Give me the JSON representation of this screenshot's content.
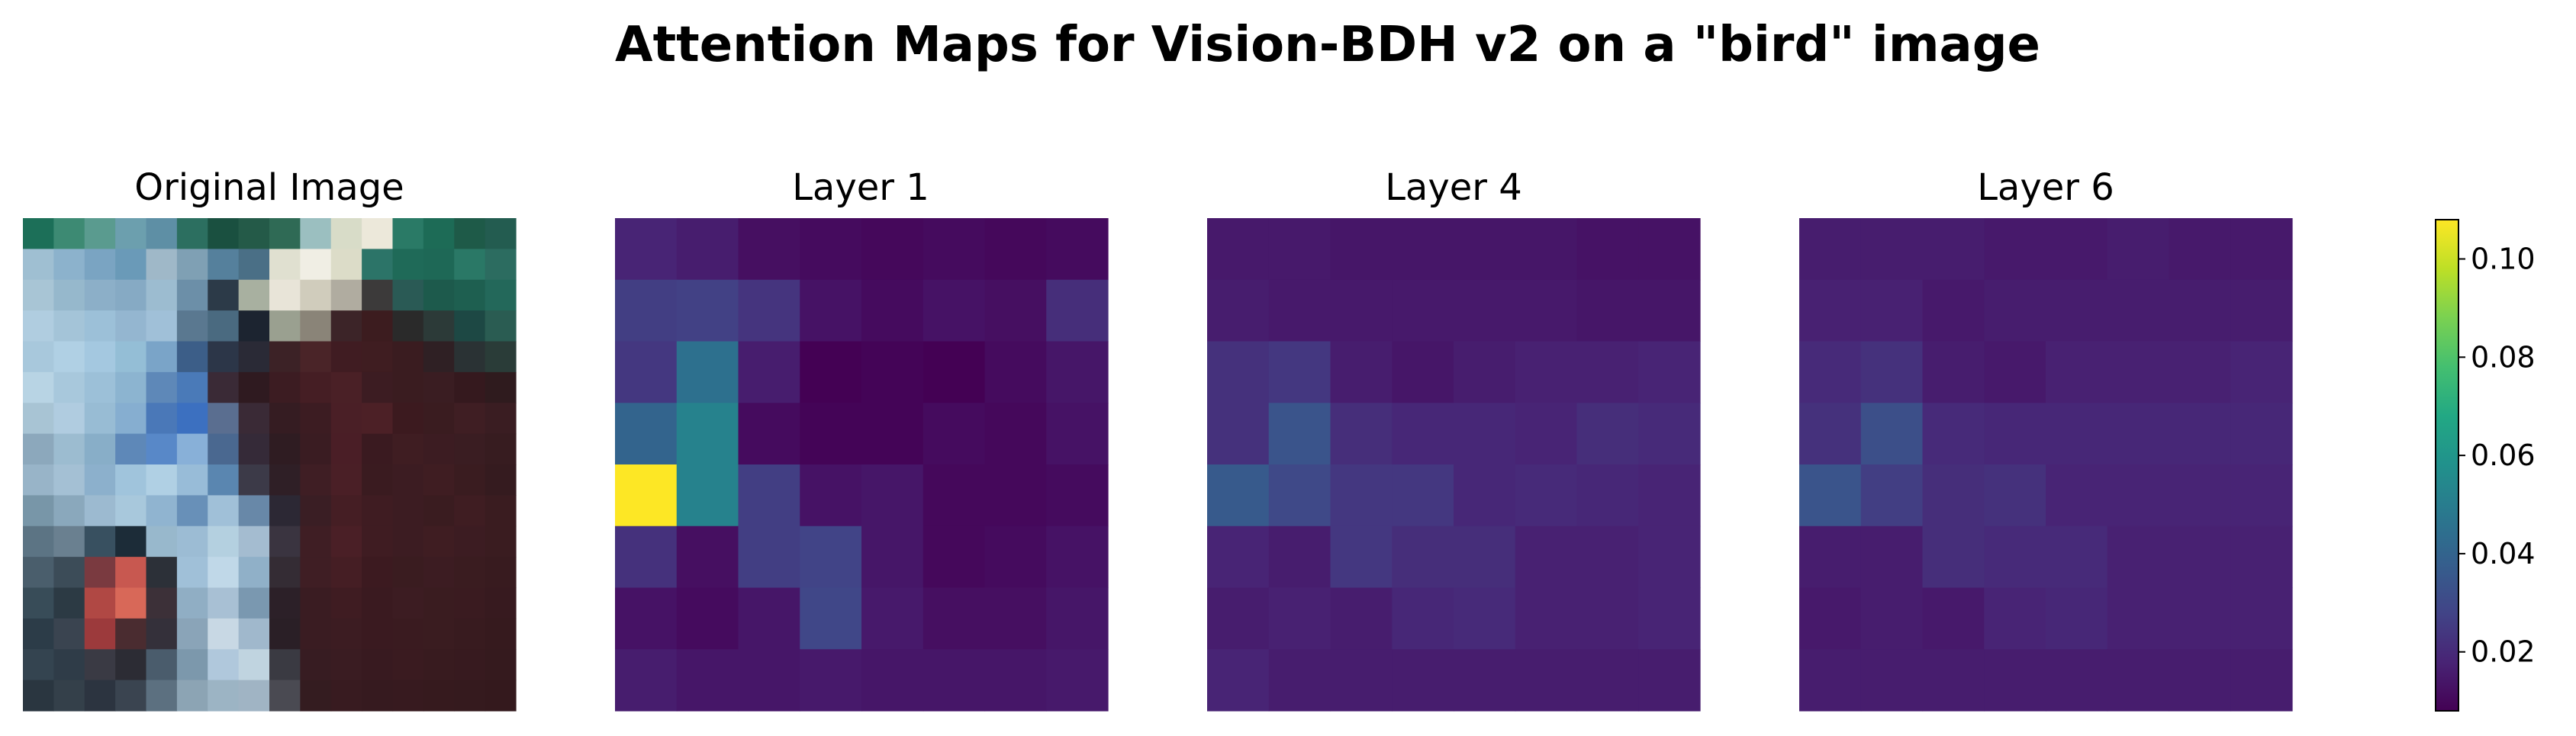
{
  "chart_data": {
    "type": "heatmap",
    "title": "Attention Maps for Vision-BDH v2 on a \"bird\" image",
    "colormap": "viridis",
    "clim": [
      0.008,
      0.108
    ],
    "colorbar": {
      "ticks": [
        0.02,
        0.04,
        0.06,
        0.08,
        0.1
      ],
      "tick_labels": [
        "0.02",
        "0.04",
        "0.06",
        "0.08",
        "0.10"
      ]
    },
    "image_panel": {
      "title": "Original Image",
      "grid": [
        [
          "#1c6f58",
          "#3d8a73",
          "#5a9b8f",
          "#6c9fae",
          "#5e8fa5",
          "#2c6f60",
          "#1a5040",
          "#245a48",
          "#2f6a55",
          "#9bbfc0",
          "#d8dcc8",
          "#ece8da",
          "#2a7a66",
          "#1d6b56",
          "#1e5a48",
          "#235c50"
        ],
        [
          "#9fbfd2",
          "#8cb2cc",
          "#7aa4c2",
          "#6a9ab8",
          "#9fb8c8",
          "#7fa0b4",
          "#55809c",
          "#4a6f86",
          "#e0e0d0",
          "#f0eee4",
          "#dcdcc8",
          "#2c7468",
          "#1f6a58",
          "#1e6856",
          "#2a7866",
          "#2c6c60"
        ],
        [
          "#a8c5d5",
          "#96b8cc",
          "#8cafc8",
          "#86aac4",
          "#9cbcd0",
          "#6c8fa8",
          "#2c3a48",
          "#a8b0a0",
          "#e8e4d8",
          "#d0ccbc",
          "#b0aca0",
          "#3c3a3a",
          "#2a5a55",
          "#1d5a4c",
          "#1e5f50",
          "#23685a"
        ],
        [
          "#b0cde0",
          "#a4c4d8",
          "#9cc0d8",
          "#94b6d0",
          "#a0c0d8",
          "#5a7890",
          "#4a6a80",
          "#1c2430",
          "#9aa090",
          "#8a8478",
          "#3c2428",
          "#3c1c1f",
          "#2a2a2a",
          "#2c3a38",
          "#1d4844",
          "#2a5c52"
        ],
        [
          "#a8c8dc",
          "#b0d0e4",
          "#a4c8e0",
          "#94bed6",
          "#7aa4c8",
          "#3c5e88",
          "#2c3648",
          "#2a2a36",
          "#3c2226",
          "#4a2428",
          "#401c22",
          "#3f1d21",
          "#3a1c20",
          "#2f2024",
          "#2a3234",
          "#2a3c38"
        ],
        [
          "#b8d4e4",
          "#a8c8dc",
          "#9cc0d8",
          "#8cb4d0",
          "#5e88b8",
          "#4a7ab8",
          "#3a2a36",
          "#2f1a20",
          "#3c1c22",
          "#451e24",
          "#4a2026",
          "#3c1c22",
          "#3a1c20",
          "#3a1d22",
          "#35191e",
          "#2f1b1e"
        ],
        [
          "#a8c4d4",
          "#b0cce0",
          "#98bcd4",
          "#86aed0",
          "#4a78b8",
          "#3c70c0",
          "#5a6e90",
          "#3a2a36",
          "#351c22",
          "#3c1c22",
          "#4a1f26",
          "#4c2026",
          "#3c1a1f",
          "#3a1c20",
          "#3f1e23",
          "#3a1d22"
        ],
        [
          "#8ca8bc",
          "#9cbcd0",
          "#88aec8",
          "#5e88b8",
          "#5888c8",
          "#88b0d8",
          "#4a6890",
          "#352a38",
          "#2f1c22",
          "#3a1c22",
          "#4a1e26",
          "#3a1a20",
          "#3f1d22",
          "#3c1c22",
          "#3a1d22",
          "#371c20"
        ],
        [
          "#98b4c8",
          "#a4c0d4",
          "#8cb0cc",
          "#a0c4dc",
          "#b0d0e4",
          "#98bcd8",
          "#5a86b0",
          "#3c3a48",
          "#2f1f26",
          "#3f1e24",
          "#4a1f26",
          "#3a1b20",
          "#3c1c22",
          "#3f1d22",
          "#3a1c20",
          "#351b1f"
        ],
        [
          "#7896a8",
          "#8aa8bc",
          "#9cbad0",
          "#a8c8dc",
          "#90b4d0",
          "#6890b8",
          "#a0c0d8",
          "#6888a8",
          "#2c2834",
          "#3a1e24",
          "#451e24",
          "#3f1c22",
          "#3c1c22",
          "#3a1c20",
          "#3f1d22",
          "#3a1c20"
        ],
        [
          "#5c7484",
          "#6a8090",
          "#385060",
          "#1c2c38",
          "#98b8cc",
          "#9cbcd4",
          "#b4d0e0",
          "#a4bcd0",
          "#3a3440",
          "#3f1e24",
          "#4a1f26",
          "#3f1c22",
          "#3c1c22",
          "#3f1d22",
          "#3c1c22",
          "#3a1c20"
        ],
        [
          "#4a5e6c",
          "#3c4c58",
          "#7a3a40",
          "#c85850",
          "#2c3038",
          "#a0c0d8",
          "#c0d8e8",
          "#90b0c8",
          "#342c34",
          "#3f1e24",
          "#451e24",
          "#3c1a20",
          "#3a1c20",
          "#3c1c22",
          "#3a1c20",
          "#381b1f"
        ],
        [
          "#384c58",
          "#2c3a44",
          "#b04844",
          "#d86858",
          "#3c3038",
          "#90aec4",
          "#a8c0d4",
          "#7a98b0",
          "#2c2028",
          "#3a1c22",
          "#3f1c22",
          "#3a1a20",
          "#3c1c22",
          "#3a1c20",
          "#3a1b20",
          "#371a1f"
        ],
        [
          "#2c3c48",
          "#3a4450",
          "#9c3a3c",
          "#4a2c30",
          "#34303a",
          "#8aa4b8",
          "#c8d8e4",
          "#a0b8cc",
          "#2a1f26",
          "#3a1c22",
          "#3c1c22",
          "#3a1a20",
          "#3a1b20",
          "#3a1c20",
          "#381b1f",
          "#361a1e"
        ],
        [
          "#344450",
          "#2f3c48",
          "#3a3a44",
          "#2c2c34",
          "#4a5c6c",
          "#7c98ac",
          "#b0c8dc",
          "#c0d4e0",
          "#3a3a42",
          "#371c22",
          "#3a1c22",
          "#381a20",
          "#3a1b20",
          "#381b1f",
          "#371a1f",
          "#351a1e"
        ],
        [
          "#2a3640",
          "#34404a",
          "#2c3440",
          "#3a4450",
          "#5c7080",
          "#8ca4b4",
          "#9cb4c4",
          "#a0b4c4",
          "#4a4a52",
          "#341c20",
          "#381b20",
          "#361a1f",
          "#371a1f",
          "#361a1e",
          "#351a1e",
          "#34191d"
        ]
      ]
    },
    "panels": [
      {
        "title": "Layer 1",
        "values": [
          [
            0.018,
            0.016,
            0.012,
            0.011,
            0.01,
            0.011,
            0.01,
            0.011
          ],
          [
            0.026,
            0.027,
            0.023,
            0.013,
            0.011,
            0.013,
            0.012,
            0.021
          ],
          [
            0.024,
            0.045,
            0.016,
            0.008,
            0.009,
            0.008,
            0.011,
            0.014
          ],
          [
            0.04,
            0.052,
            0.011,
            0.009,
            0.009,
            0.011,
            0.01,
            0.013
          ],
          [
            0.108,
            0.052,
            0.026,
            0.013,
            0.014,
            0.01,
            0.01,
            0.011
          ],
          [
            0.022,
            0.012,
            0.026,
            0.028,
            0.014,
            0.01,
            0.011,
            0.013
          ],
          [
            0.013,
            0.011,
            0.014,
            0.029,
            0.015,
            0.012,
            0.012,
            0.014
          ],
          [
            0.016,
            0.014,
            0.014,
            0.015,
            0.014,
            0.014,
            0.014,
            0.015
          ]
        ]
      },
      {
        "title": "Layer 4",
        "values": [
          [
            0.015,
            0.015,
            0.014,
            0.014,
            0.014,
            0.014,
            0.013,
            0.013
          ],
          [
            0.016,
            0.015,
            0.015,
            0.015,
            0.015,
            0.015,
            0.014,
            0.014
          ],
          [
            0.022,
            0.024,
            0.016,
            0.014,
            0.016,
            0.017,
            0.017,
            0.018
          ],
          [
            0.022,
            0.034,
            0.021,
            0.019,
            0.019,
            0.018,
            0.021,
            0.02
          ],
          [
            0.036,
            0.03,
            0.024,
            0.024,
            0.019,
            0.02,
            0.019,
            0.018
          ],
          [
            0.018,
            0.016,
            0.024,
            0.021,
            0.021,
            0.017,
            0.017,
            0.018
          ],
          [
            0.016,
            0.017,
            0.016,
            0.019,
            0.02,
            0.017,
            0.017,
            0.018
          ],
          [
            0.018,
            0.016,
            0.016,
            0.016,
            0.016,
            0.016,
            0.016,
            0.016
          ]
        ]
      },
      {
        "title": "Layer 6",
        "values": [
          [
            0.016,
            0.016,
            0.016,
            0.015,
            0.015,
            0.016,
            0.015,
            0.015
          ],
          [
            0.017,
            0.017,
            0.015,
            0.016,
            0.016,
            0.016,
            0.016,
            0.016
          ],
          [
            0.02,
            0.022,
            0.016,
            0.015,
            0.017,
            0.017,
            0.017,
            0.018
          ],
          [
            0.022,
            0.032,
            0.02,
            0.019,
            0.019,
            0.019,
            0.019,
            0.019
          ],
          [
            0.034,
            0.026,
            0.021,
            0.022,
            0.018,
            0.018,
            0.018,
            0.018
          ],
          [
            0.016,
            0.016,
            0.021,
            0.02,
            0.02,
            0.017,
            0.017,
            0.017
          ],
          [
            0.015,
            0.016,
            0.015,
            0.018,
            0.019,
            0.017,
            0.017,
            0.017
          ],
          [
            0.016,
            0.016,
            0.016,
            0.016,
            0.016,
            0.016,
            0.016,
            0.016
          ]
        ]
      }
    ]
  }
}
